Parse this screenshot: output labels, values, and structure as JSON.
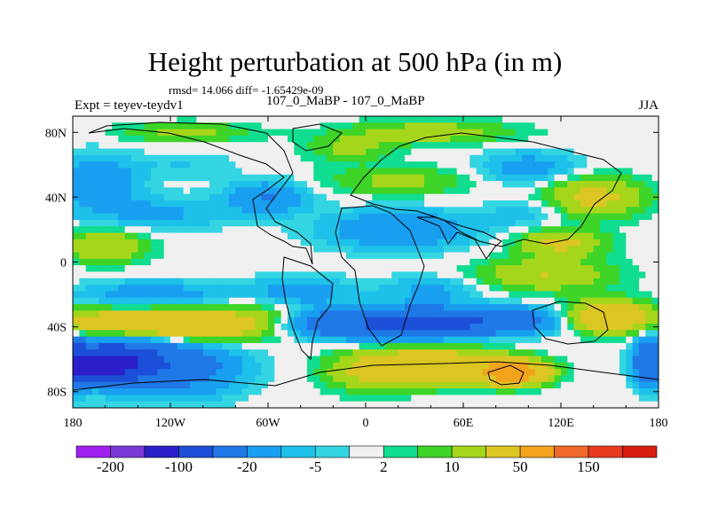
{
  "header": {
    "title": "Height perturbation at 500 hPa (in m)",
    "stats": "rmsd= 14.066 diff= -1.65429e-09",
    "experiment": "Expt = teyev-teydv1",
    "cases": "107_0_MaBP - 107_0_MaBP",
    "season": "JJA"
  },
  "chart_data": {
    "type": "heatmap",
    "title": "Height perturbation at 500 hPa (in m)",
    "variable": "500 hPa geopotential height perturbation",
    "units": "m",
    "xlim": [
      -180,
      180
    ],
    "ylim": [
      -90,
      90
    ],
    "x_ticks": [
      {
        "value": -180,
        "label": "180"
      },
      {
        "value": -120,
        "label": "120W"
      },
      {
        "value": -60,
        "label": "60W"
      },
      {
        "value": 0,
        "label": "0"
      },
      {
        "value": 60,
        "label": "60E"
      },
      {
        "value": 120,
        "label": "120E"
      },
      {
        "value": 180,
        "label": "180"
      }
    ],
    "y_ticks": [
      {
        "value": 80,
        "label": "80N"
      },
      {
        "value": 40,
        "label": "40N"
      },
      {
        "value": 0,
        "label": "0"
      },
      {
        "value": -40,
        "label": "40S"
      },
      {
        "value": -80,
        "label": "80S"
      }
    ],
    "levels": [
      -200,
      -150,
      -100,
      -50,
      -20,
      -10,
      -5,
      -2,
      2,
      5,
      10,
      20,
      50,
      100,
      150,
      200
    ],
    "level_labels": [
      "-200",
      "-100",
      "-20",
      "-5",
      "2",
      "10",
      "50",
      "150"
    ],
    "colors": [
      "#a020f0",
      "#7b3ad8",
      "#2a1fc8",
      "#1c4fd8",
      "#1f78e6",
      "#199ff0",
      "#1dc1ea",
      "#34d5e2",
      "#f0f0f0",
      "#10dd90",
      "#3ed428",
      "#a6d61b",
      "#dcc623",
      "#f3a31c",
      "#ef6a2a",
      "#e63b1e",
      "#d91e10"
    ],
    "blobs": [
      {
        "lon": -160,
        "lat": -63,
        "value": -120,
        "w": 26,
        "h": 9
      },
      {
        "lon": -150,
        "lat": -55,
        "value": -30,
        "w": 40,
        "h": 20
      },
      {
        "lon": -110,
        "lat": -66,
        "value": -25,
        "w": 35,
        "h": 16
      },
      {
        "lon": -150,
        "lat": -38,
        "value": 45,
        "w": 55,
        "h": 9
      },
      {
        "lon": -100,
        "lat": -40,
        "value": 30,
        "w": 40,
        "h": 9
      },
      {
        "lon": -60,
        "lat": -33,
        "value": 12,
        "w": 30,
        "h": 8
      },
      {
        "lon": -10,
        "lat": -38,
        "value": -40,
        "w": 45,
        "h": 9
      },
      {
        "lon": 40,
        "lat": -38,
        "value": -60,
        "w": 35,
        "h": 8
      },
      {
        "lon": 90,
        "lat": -36,
        "value": -30,
        "w": 35,
        "h": 8
      },
      {
        "lon": -50,
        "lat": -46,
        "value": 4,
        "w": 40,
        "h": 3
      },
      {
        "lon": 40,
        "lat": -64,
        "value": 40,
        "w": 40,
        "h": 11
      },
      {
        "lon": 90,
        "lat": -68,
        "value": 80,
        "w": 20,
        "h": 7
      },
      {
        "lon": 0,
        "lat": -68,
        "value": 15,
        "w": 25,
        "h": 12
      },
      {
        "lon": 150,
        "lat": -34,
        "value": 50,
        "w": 25,
        "h": 9
      },
      {
        "lon": 175,
        "lat": -62,
        "value": -50,
        "w": 10,
        "h": 14
      },
      {
        "lon": -180,
        "lat": -62,
        "value": -50,
        "w": 8,
        "h": 14
      },
      {
        "lon": -130,
        "lat": -20,
        "value": -15,
        "w": 45,
        "h": 8
      },
      {
        "lon": -40,
        "lat": -18,
        "value": -15,
        "w": 30,
        "h": 9
      },
      {
        "lon": 40,
        "lat": -18,
        "value": -12,
        "w": 30,
        "h": 9
      },
      {
        "lon": 110,
        "lat": -8,
        "value": 20,
        "w": 40,
        "h": 10
      },
      {
        "lon": -160,
        "lat": 10,
        "value": 20,
        "w": 25,
        "h": 10
      },
      {
        "lon": -130,
        "lat": 30,
        "value": -12,
        "w": 45,
        "h": 10
      },
      {
        "lon": 20,
        "lat": 20,
        "value": -20,
        "w": 45,
        "h": 12
      },
      {
        "lon": 100,
        "lat": 30,
        "value": -8,
        "w": 25,
        "h": 9
      },
      {
        "lon": 120,
        "lat": 12,
        "value": 25,
        "w": 25,
        "h": 8
      },
      {
        "lon": 140,
        "lat": 40,
        "value": 25,
        "w": 30,
        "h": 12
      },
      {
        "lon": -165,
        "lat": 50,
        "value": -20,
        "w": 25,
        "h": 15
      },
      {
        "lon": -60,
        "lat": 40,
        "value": -20,
        "w": 25,
        "h": 10
      },
      {
        "lon": 20,
        "lat": 50,
        "value": 12,
        "w": 45,
        "h": 9
      },
      {
        "lon": 40,
        "lat": 80,
        "value": 15,
        "w": 50,
        "h": 7
      },
      {
        "lon": -110,
        "lat": 80,
        "value": 12,
        "w": 40,
        "h": 6
      },
      {
        "lon": -10,
        "lat": 70,
        "value": 12,
        "w": 25,
        "h": 8
      },
      {
        "lon": 100,
        "lat": 58,
        "value": -15,
        "w": 30,
        "h": 10
      },
      {
        "lon": -110,
        "lat": 60,
        "value": -5,
        "w": 30,
        "h": 8
      }
    ]
  }
}
